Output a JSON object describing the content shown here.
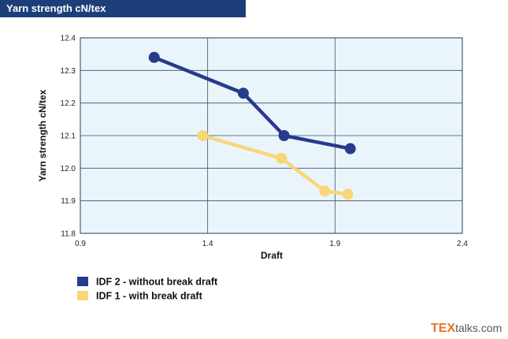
{
  "header": {
    "title": "Yarn strength cN/tex"
  },
  "brand": {
    "tex": "TEX",
    "talks": "talks.com"
  },
  "chart_data": {
    "type": "line",
    "xlabel": "Draft",
    "ylabel": "Yarn strength cN/tex",
    "xlim": [
      0.9,
      2.4
    ],
    "ylim": [
      11.8,
      12.4
    ],
    "x_ticks": [
      "0.9",
      "1.4",
      "1.9",
      "2.4"
    ],
    "y_ticks": [
      "11.8",
      "11.9",
      "12.0",
      "12.1",
      "12.2",
      "12.3",
      "12.4"
    ],
    "grid": true,
    "legend_position": "bottom-left",
    "series": [
      {
        "name": "IDF 2 - without break draft",
        "color": "#283a8c",
        "x": [
          1.19,
          1.54,
          1.7,
          1.96
        ],
        "y": [
          12.34,
          12.23,
          12.1,
          12.06
        ]
      },
      {
        "name": "IDF 1 - with break draft",
        "color": "#fad67a",
        "x": [
          1.38,
          1.69,
          1.86,
          1.95
        ],
        "y": [
          12.1,
          12.03,
          11.93,
          11.92
        ]
      }
    ]
  }
}
